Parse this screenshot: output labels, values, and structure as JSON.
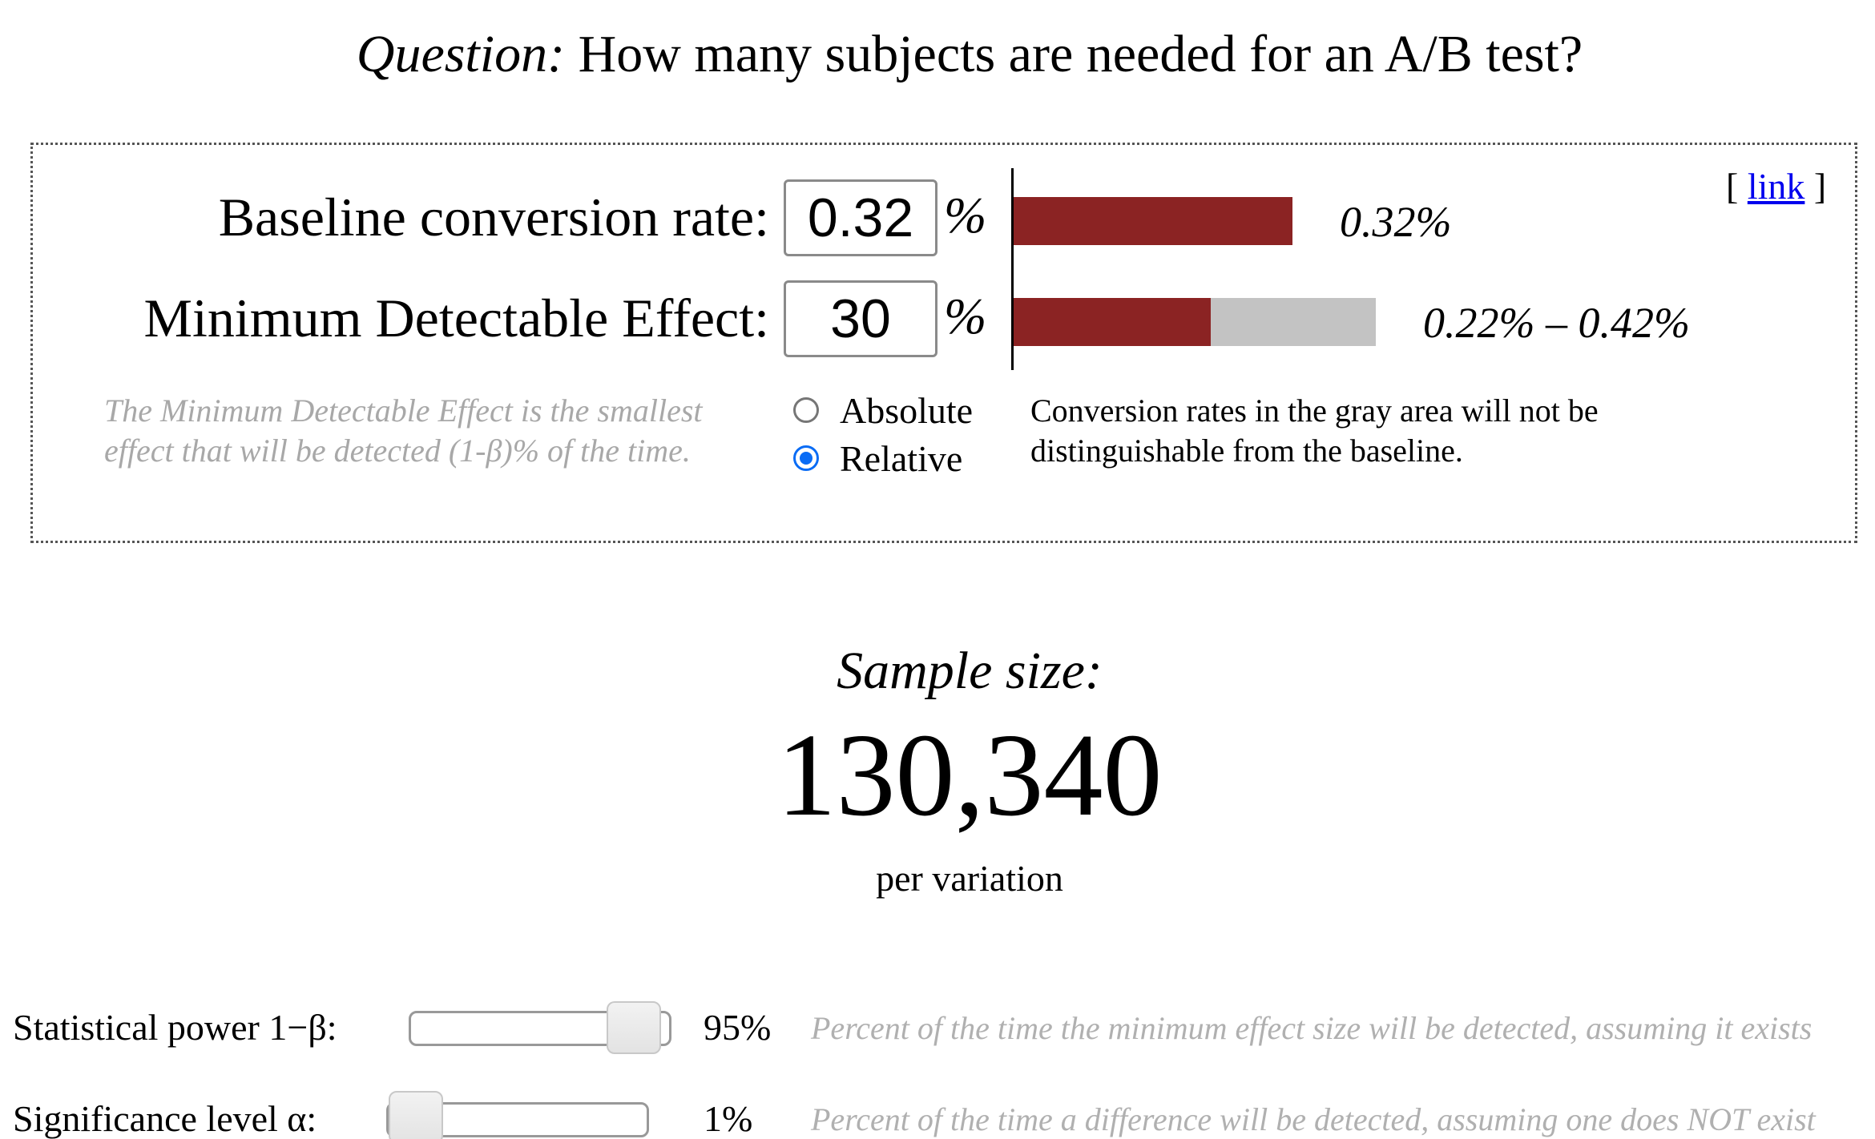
{
  "question": {
    "prefix": "Question:",
    "text": "How many subjects are needed for an A/B test?"
  },
  "calculator": {
    "baseline_label": "Baseline conversion rate:",
    "baseline_value": "0.32",
    "baseline_unit": "%",
    "mde_label": "Minimum Detectable Effect:",
    "mde_value": "30",
    "mde_unit": "%",
    "baseline_bar_label": "0.32%",
    "range_bar_label": "0.22% – 0.42%",
    "link_open": "[",
    "link_text": "link",
    "link_close": "]",
    "mde_note": "The Minimum Detectable Effect is the smallest effect that will be detected (1-β)% of the time.",
    "mode_options": [
      "Absolute",
      "Relative"
    ],
    "mode_selected": "Relative",
    "gray_note": "Conversion rates in the gray area will not be distinguishable from the baseline.",
    "colors": {
      "bar": "#8b2323",
      "gray_area": "#c3c3c3"
    }
  },
  "result": {
    "title": "Sample size:",
    "value": "130,340",
    "unit": "per variation"
  },
  "sliders": [
    {
      "label": "Statistical power 1−β:",
      "value": "95%",
      "level": 0.95,
      "description": "Percent of the time the minimum effect size will be detected, assuming it exists"
    },
    {
      "label": "Significance level α:",
      "value": "1%",
      "level": 0.01,
      "description": "Percent of the time a difference will be detected, assuming one does NOT exist"
    }
  ]
}
